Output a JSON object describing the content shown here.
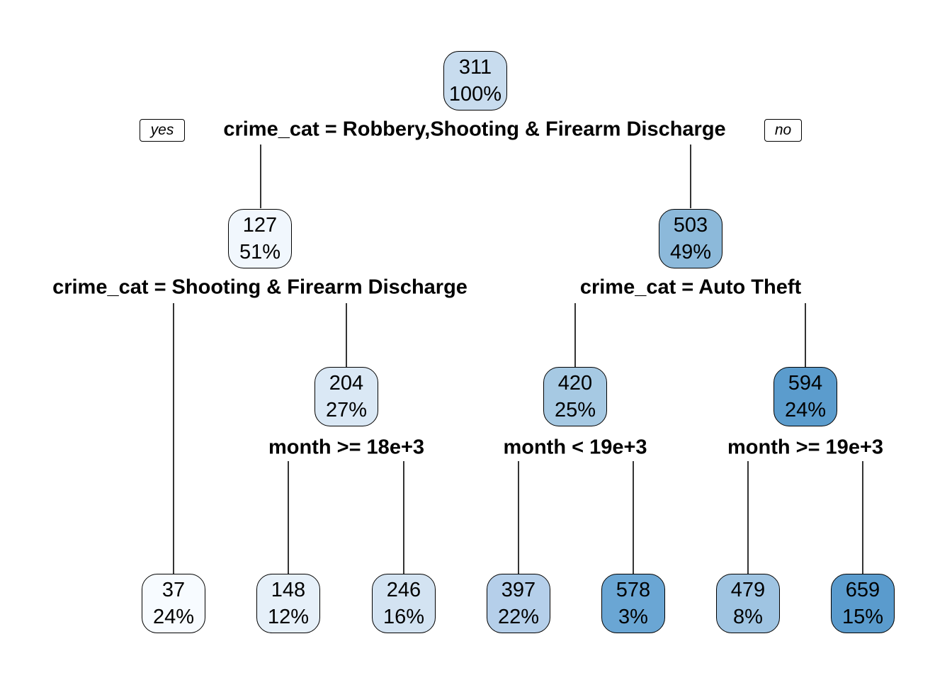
{
  "tree": {
    "root": {
      "value": "311",
      "pct": "100%",
      "fill": "#c8dcee"
    },
    "n2": {
      "value": "127",
      "pct": "51%",
      "fill": "#f1f7fd"
    },
    "n3": {
      "value": "503",
      "pct": "49%",
      "fill": "#8cb9da"
    },
    "n5": {
      "value": "204",
      "pct": "27%",
      "fill": "#dae8f5"
    },
    "n6": {
      "value": "420",
      "pct": "25%",
      "fill": "#a6c9e3"
    },
    "n7": {
      "value": "594",
      "pct": "24%",
      "fill": "#5b9ccd"
    },
    "leaf1": {
      "value": "37",
      "pct": "24%",
      "fill": "#f7fbff"
    },
    "leaf2": {
      "value": "148",
      "pct": "12%",
      "fill": "#e6f0f9"
    },
    "leaf3": {
      "value": "246",
      "pct": "16%",
      "fill": "#d3e3f2"
    },
    "leaf4": {
      "value": "397",
      "pct": "22%",
      "fill": "#b5cfea"
    },
    "leaf5": {
      "value": "578",
      "pct": "3%",
      "fill": "#6aa6d4"
    },
    "leaf6": {
      "value": "479",
      "pct": "8%",
      "fill": "#9fc4e2"
    },
    "leaf7": {
      "value": "659",
      "pct": "15%",
      "fill": "#5a9bcd"
    }
  },
  "splits": {
    "root": "crime_cat = Robbery,Shooting & Firearm Discharge",
    "n2": "crime_cat = Shooting & Firearm Discharge",
    "n3": "crime_cat = Auto Theft",
    "n5": "month >= 18e+3",
    "n6": "month < 19e+3",
    "n7": "month >= 19e+3"
  },
  "branch_labels": {
    "yes": "yes",
    "no": "no"
  }
}
